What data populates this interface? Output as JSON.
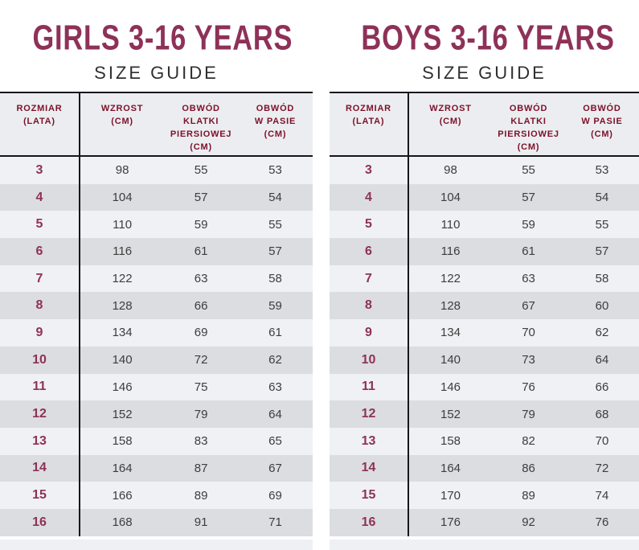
{
  "colors": {
    "title_accent": "#8e3158",
    "header_text": "#7c1128",
    "header_bg": "#ecedf1",
    "row_light": "#f0f1f4",
    "row_dark": "#dcdde1",
    "border_dark": "#17171a",
    "data_text": "#3d3d3d"
  },
  "chart_data": [
    {
      "type": "table",
      "title": "GIRLS 3-16 YEARS",
      "subtitle": "SIZE GUIDE",
      "columns": [
        "ROZMIAR (LATA)",
        "WZROST (CM)",
        "OBWÓD KLATKI PIERSIOWEJ (CM)",
        "OBWÓD W PASIE (CM)"
      ],
      "columns_lines": [
        [
          "ROZMIAR",
          "(LATA)"
        ],
        [
          "WZROST",
          "(CM)"
        ],
        [
          "OBWÓD",
          "KLATKI",
          "PIERSIOWEJ",
          "(CM)"
        ],
        [
          "OBWÓD",
          "W PASIE",
          "(CM)"
        ]
      ],
      "rows": [
        [
          3,
          98,
          55,
          53
        ],
        [
          4,
          104,
          57,
          54
        ],
        [
          5,
          110,
          59,
          55
        ],
        [
          6,
          116,
          61,
          57
        ],
        [
          7,
          122,
          63,
          58
        ],
        [
          8,
          128,
          66,
          59
        ],
        [
          9,
          134,
          69,
          61
        ],
        [
          10,
          140,
          72,
          62
        ],
        [
          11,
          146,
          75,
          63
        ],
        [
          12,
          152,
          79,
          64
        ],
        [
          13,
          158,
          83,
          65
        ],
        [
          14,
          164,
          87,
          67
        ],
        [
          15,
          166,
          89,
          69
        ],
        [
          16,
          168,
          91,
          71
        ]
      ]
    },
    {
      "type": "table",
      "title": "BOYS 3-16 YEARS",
      "subtitle": "SIZE GUIDE",
      "columns": [
        "ROZMIAR (LATA)",
        "WZROST (CM)",
        "OBWÓD KLATKI PIERSIOWEJ (CM)",
        "OBWÓD W PASIE (CM)"
      ],
      "columns_lines": [
        [
          "ROZMIAR",
          "(LATA)"
        ],
        [
          "WZROST",
          "(CM)"
        ],
        [
          "OBWÓD",
          "KLATKI",
          "PIERSIOWEJ",
          "(CM)"
        ],
        [
          "OBWÓD",
          "W PASIE",
          "(CM)"
        ]
      ],
      "rows": [
        [
          3,
          98,
          55,
          53
        ],
        [
          4,
          104,
          57,
          54
        ],
        [
          5,
          110,
          59,
          55
        ],
        [
          6,
          116,
          61,
          57
        ],
        [
          7,
          122,
          63,
          58
        ],
        [
          8,
          128,
          67,
          60
        ],
        [
          9,
          134,
          70,
          62
        ],
        [
          10,
          140,
          73,
          64
        ],
        [
          11,
          146,
          76,
          66
        ],
        [
          12,
          152,
          79,
          68
        ],
        [
          13,
          158,
          82,
          70
        ],
        [
          14,
          164,
          86,
          72
        ],
        [
          15,
          170,
          89,
          74
        ],
        [
          16,
          176,
          92,
          76
        ]
      ]
    }
  ]
}
